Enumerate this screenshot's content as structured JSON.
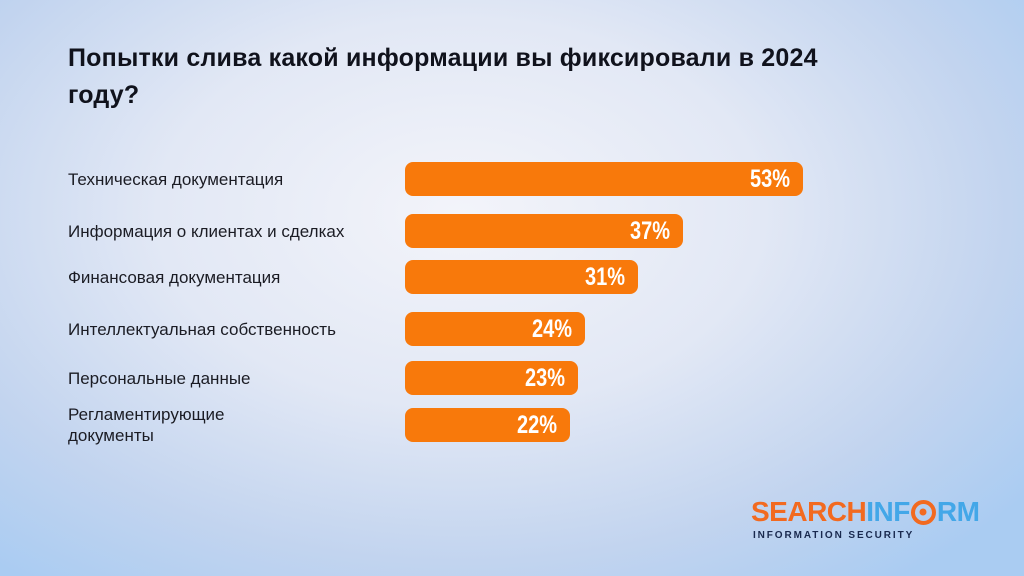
{
  "title": {
    "line1": "Попытки слива какой информации вы фиксировали в 2024",
    "line2": "году?"
  },
  "chart_data": {
    "type": "bar",
    "orientation": "horizontal",
    "title": "Попытки слива какой информации вы фиксировали в 2024 году?",
    "categories": [
      "Техническая документация",
      "Информация о клиентах и сделках",
      "Финансовая документация",
      "Интеллектуальная собственность",
      "Персональные данные",
      "Регламентирующие\nдокументы"
    ],
    "values": [
      53,
      37,
      31,
      24,
      23,
      22
    ],
    "value_labels": [
      "53%",
      "37%",
      "31%",
      "24%",
      "23%",
      "22%"
    ],
    "unit": "%",
    "xlim": [
      0,
      56
    ],
    "grid": false,
    "legend": false,
    "bar_color": "#F8790B",
    "value_label_color": "#FFFFFF",
    "category_label_color": "#1B1C24"
  },
  "logo": {
    "part1": "SEARCH",
    "part2": "INF",
    "part3": "RM",
    "o_icon": "orange-ring-dot-icon",
    "tagline": "INFORMATION SECURITY",
    "orange": "#F26A20",
    "blue": "#43A7E8",
    "tagline_color": "#19294E"
  },
  "colors": {
    "background_center": "#F3F4FA",
    "background_edge": "#AACCF2",
    "title": "#10121C",
    "bar": "#F8790B"
  }
}
